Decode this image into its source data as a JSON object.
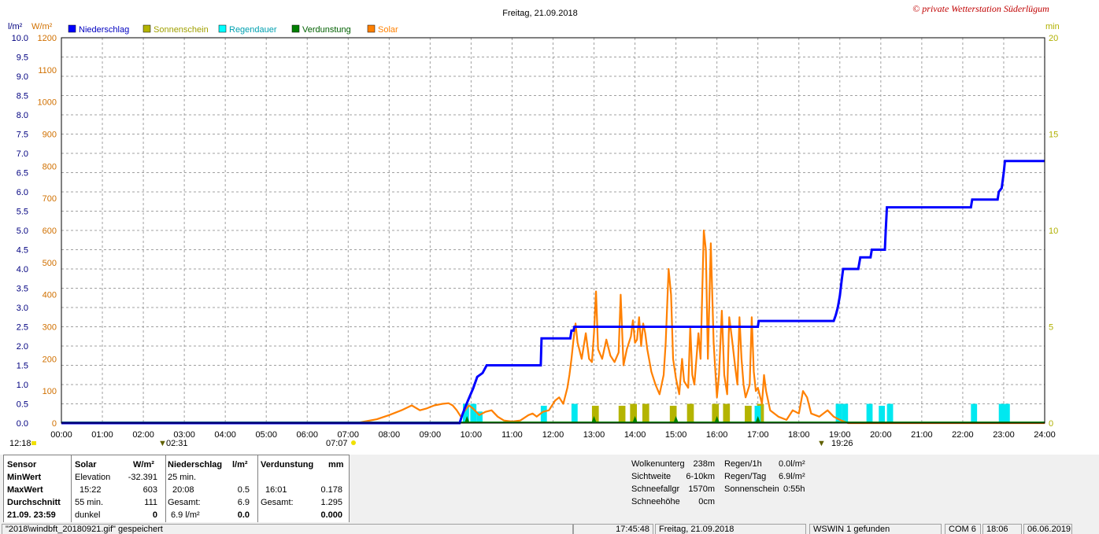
{
  "title": "Freitag, 21.09.2018",
  "copyright": "© private Wetterstation Süderlügum",
  "left_axis_unit": "l/m²",
  "solar_axis_unit": "W/m²",
  "right_axis_unit": "min",
  "legend": [
    {
      "label": "Niederschlag",
      "color": "#0000ff"
    },
    {
      "label": "Sonnenschein",
      "color": "#b4b400"
    },
    {
      "label": "Regendauer",
      "color": "#00ffff"
    },
    {
      "label": "Verdunstung",
      "color": "#008000"
    },
    {
      "label": "Solar",
      "color": "#ff8000"
    }
  ],
  "colors": {
    "precip": "#0000ff",
    "sun": "#b4b400",
    "rain": "#00e8f0",
    "evap": "#008000",
    "solar": "#ff8000",
    "solar_axis": "#d07000",
    "min_axis": "#b0b000"
  },
  "x_ticks": [
    "00:00",
    "01:00",
    "02:00",
    "03:00",
    "04:00",
    "05:00",
    "06:00",
    "07:00",
    "08:00",
    "09:00",
    "10:00",
    "11:00",
    "12:00",
    "13:00",
    "14:00",
    "15:00",
    "16:00",
    "17:00",
    "18:00",
    "19:00",
    "20:00",
    "21:00",
    "22:00",
    "23:00",
    "24:00"
  ],
  "markers": {
    "moonrise": "12:18",
    "moonset": "02:31",
    "sunrise": "07:07",
    "sunset": "19:26"
  },
  "chart_data": {
    "type": "line",
    "title": "Freitag, 21.09.2018",
    "x_range": [
      "00:00",
      "24:00"
    ],
    "y_left": {
      "label": "l/m²",
      "range": [
        0,
        10.0
      ],
      "ticks": [
        "0.0",
        "0.5",
        "1.0",
        "1.5",
        "2.0",
        "2.5",
        "3.0",
        "3.5",
        "4.0",
        "4.5",
        "5.0",
        "5.5",
        "6.0",
        "6.5",
        "7.0",
        "7.5",
        "8.0",
        "8.5",
        "9.0",
        "9.5",
        "10.0"
      ]
    },
    "y_solar": {
      "label": "W/m²",
      "range": [
        0,
        1200
      ],
      "ticks": [
        "0",
        "100",
        "200",
        "300",
        "400",
        "500",
        "600",
        "700",
        "800",
        "900",
        "1000",
        "1100",
        "1200"
      ]
    },
    "y_right": {
      "label": "min",
      "range": [
        0,
        20
      ],
      "ticks": [
        "0",
        "5",
        "10",
        "15",
        "20"
      ]
    },
    "grid": true,
    "legend_position": "top-left",
    "series": [
      {
        "name": "Niederschlag",
        "axis": "left",
        "step": true,
        "points": [
          [
            0,
            0
          ],
          [
            9.72,
            0
          ],
          [
            9.78,
            0.2
          ],
          [
            9.85,
            0.4
          ],
          [
            9.95,
            0.65
          ],
          [
            10.05,
            0.9
          ],
          [
            10.15,
            1.2
          ],
          [
            10.28,
            1.3
          ],
          [
            10.38,
            1.5
          ],
          [
            11.7,
            1.5
          ],
          [
            11.72,
            2.2
          ],
          [
            12.42,
            2.2
          ],
          [
            12.45,
            2.4
          ],
          [
            12.5,
            2.4
          ],
          [
            12.52,
            2.5
          ],
          [
            17.0,
            2.5
          ],
          [
            17.02,
            2.65
          ],
          [
            18.85,
            2.65
          ],
          [
            18.9,
            2.8
          ],
          [
            18.95,
            3.0
          ],
          [
            19.0,
            3.3
          ],
          [
            19.05,
            3.75
          ],
          [
            19.08,
            4.0
          ],
          [
            19.45,
            4.0
          ],
          [
            19.5,
            4.3
          ],
          [
            19.75,
            4.3
          ],
          [
            19.78,
            4.5
          ],
          [
            20.1,
            4.5
          ],
          [
            20.12,
            5.0
          ],
          [
            20.15,
            5.6
          ],
          [
            22.2,
            5.6
          ],
          [
            22.23,
            5.8
          ],
          [
            22.85,
            5.8
          ],
          [
            22.88,
            6.0
          ],
          [
            22.95,
            6.1
          ],
          [
            23.0,
            6.5
          ],
          [
            23.03,
            6.8
          ],
          [
            24.0,
            6.8
          ]
        ]
      },
      {
        "name": "Solar",
        "axis": "solar",
        "points": [
          [
            0,
            0
          ],
          [
            7.2,
            0
          ],
          [
            7.4,
            5
          ],
          [
            7.7,
            12
          ],
          [
            8.0,
            25
          ],
          [
            8.3,
            40
          ],
          [
            8.55,
            55
          ],
          [
            8.75,
            40
          ],
          [
            8.9,
            45
          ],
          [
            9.1,
            55
          ],
          [
            9.3,
            60
          ],
          [
            9.45,
            62
          ],
          [
            9.55,
            55
          ],
          [
            9.65,
            40
          ],
          [
            9.75,
            20
          ],
          [
            9.85,
            40
          ],
          [
            9.95,
            55
          ],
          [
            10.05,
            45
          ],
          [
            10.2,
            25
          ],
          [
            10.35,
            35
          ],
          [
            10.5,
            40
          ],
          [
            10.65,
            20
          ],
          [
            10.8,
            8
          ],
          [
            11.0,
            5
          ],
          [
            11.2,
            8
          ],
          [
            11.4,
            25
          ],
          [
            11.5,
            30
          ],
          [
            11.6,
            20
          ],
          [
            11.75,
            35
          ],
          [
            11.9,
            40
          ],
          [
            12.05,
            70
          ],
          [
            12.15,
            80
          ],
          [
            12.25,
            60
          ],
          [
            12.35,
            110
          ],
          [
            12.4,
            150
          ],
          [
            12.45,
            200
          ],
          [
            12.5,
            260
          ],
          [
            12.55,
            310
          ],
          [
            12.6,
            250
          ],
          [
            12.7,
            200
          ],
          [
            12.8,
            280
          ],
          [
            12.88,
            200
          ],
          [
            12.95,
            190
          ],
          [
            13.0,
            280
          ],
          [
            13.05,
            410
          ],
          [
            13.1,
            230
          ],
          [
            13.2,
            200
          ],
          [
            13.3,
            260
          ],
          [
            13.4,
            210
          ],
          [
            13.5,
            190
          ],
          [
            13.6,
            220
          ],
          [
            13.65,
            400
          ],
          [
            13.72,
            180
          ],
          [
            13.8,
            230
          ],
          [
            13.9,
            270
          ],
          [
            13.95,
            320
          ],
          [
            14.0,
            250
          ],
          [
            14.05,
            260
          ],
          [
            14.1,
            330
          ],
          [
            14.15,
            240
          ],
          [
            14.2,
            310
          ],
          [
            14.25,
            280
          ],
          [
            14.3,
            230
          ],
          [
            14.4,
            160
          ],
          [
            14.5,
            120
          ],
          [
            14.6,
            90
          ],
          [
            14.7,
            150
          ],
          [
            14.75,
            250
          ],
          [
            14.82,
            480
          ],
          [
            14.88,
            400
          ],
          [
            14.93,
            200
          ],
          [
            15.0,
            140
          ],
          [
            15.08,
            90
          ],
          [
            15.15,
            200
          ],
          [
            15.2,
            130
          ],
          [
            15.3,
            110
          ],
          [
            15.35,
            300
          ],
          [
            15.4,
            150
          ],
          [
            15.45,
            120
          ],
          [
            15.5,
            200
          ],
          [
            15.55,
            280
          ],
          [
            15.6,
            200
          ],
          [
            15.68,
            600
          ],
          [
            15.73,
            540
          ],
          [
            15.78,
            200
          ],
          [
            15.85,
            560
          ],
          [
            15.92,
            250
          ],
          [
            16.0,
            80
          ],
          [
            16.05,
            150
          ],
          [
            16.12,
            350
          ],
          [
            16.18,
            150
          ],
          [
            16.25,
            90
          ],
          [
            16.3,
            330
          ],
          [
            16.37,
            260
          ],
          [
            16.45,
            170
          ],
          [
            16.5,
            120
          ],
          [
            16.55,
            330
          ],
          [
            16.6,
            200
          ],
          [
            16.65,
            120
          ],
          [
            16.7,
            80
          ],
          [
            16.8,
            120
          ],
          [
            16.85,
            330
          ],
          [
            16.9,
            160
          ],
          [
            16.95,
            100
          ],
          [
            17.0,
            110
          ],
          [
            17.1,
            60
          ],
          [
            17.15,
            150
          ],
          [
            17.2,
            100
          ],
          [
            17.3,
            40
          ],
          [
            17.5,
            20
          ],
          [
            17.7,
            10
          ],
          [
            17.85,
            40
          ],
          [
            18.0,
            30
          ],
          [
            18.1,
            100
          ],
          [
            18.2,
            80
          ],
          [
            18.3,
            30
          ],
          [
            18.5,
            20
          ],
          [
            18.7,
            40
          ],
          [
            18.85,
            20
          ],
          [
            19.0,
            10
          ],
          [
            19.2,
            0
          ],
          [
            24.0,
            0
          ]
        ]
      },
      {
        "name": "Sonnenschein",
        "axis": "right",
        "bars": [
          [
            12.95,
            0.9
          ],
          [
            13.6,
            0.9
          ],
          [
            13.88,
            1.0
          ],
          [
            14.18,
            1.0
          ],
          [
            14.85,
            0.9
          ],
          [
            15.27,
            1.0
          ],
          [
            15.88,
            1.0
          ],
          [
            16.15,
            1.0
          ],
          [
            16.68,
            0.9
          ],
          [
            16.98,
            1.0
          ]
        ]
      },
      {
        "name": "Regendauer",
        "axis": "right",
        "bars": [
          [
            9.8,
            1.0
          ],
          [
            9.98,
            1.0
          ],
          [
            10.13,
            0.6
          ],
          [
            11.7,
            0.9
          ],
          [
            12.45,
            1.0
          ],
          [
            16.92,
            0.9
          ],
          [
            18.9,
            1.0
          ],
          [
            19.05,
            1.0
          ],
          [
            19.65,
            1.0
          ],
          [
            19.95,
            0.9
          ],
          [
            20.15,
            1.0
          ],
          [
            22.2,
            1.0
          ],
          [
            22.88,
            1.0
          ],
          [
            23.0,
            1.0
          ]
        ]
      },
      {
        "name": "Verdunstung",
        "axis": "right",
        "marks": [
          9.9,
          13.0,
          14.0,
          15.0,
          16.0,
          17.0
        ]
      }
    ]
  },
  "panel": {
    "headers": {
      "sensor": "Sensor",
      "solar": "Solar",
      "solar_unit": "W/m²",
      "niederschlag": "Niederschlag",
      "nied_unit": "l/m²",
      "verdunstung": "Verdunstung",
      "verd_unit": "mm"
    },
    "row_labels": [
      "MinWert",
      "MaxWert",
      "Durchschnitt",
      "21.09. 23:59"
    ],
    "solar_rows": [
      {
        "a": "Elevation",
        "b": "-32.391"
      },
      {
        "a": "15:22",
        "b": "603"
      },
      {
        "a": "55 min.",
        "b": "111"
      },
      {
        "a": "dunkel",
        "b": "0"
      }
    ],
    "nied_rows": [
      {
        "a": "25 min.",
        "b": ""
      },
      {
        "a": "20:08",
        "b": "0.5"
      },
      {
        "a": "Gesamt:",
        "b": "6.9"
      },
      {
        "a": "6.9 l/m²",
        "b": "0.0"
      }
    ],
    "verd_rows": [
      {
        "a": "",
        "b": ""
      },
      {
        "a": "16:01",
        "b": "0.178"
      },
      {
        "a": "Gesamt:",
        "b": "1.295"
      },
      {
        "a": "",
        "b": "0.000"
      }
    ]
  },
  "weather_info": {
    "wolkenunterg_label": "Wolkenunterg",
    "wolkenunterg": "238m",
    "sichtweite_label": "Sichtweite",
    "sichtweite": "6-10km",
    "schneefallgr_label": "Schneefallgr",
    "schneefallgr": "1570m",
    "schneehoehe_label": "Schneehöhe",
    "schneehoehe": "0cm",
    "regen1h_label": "Regen/1h",
    "regen1h": "0.0l/m²",
    "regentag_label": "Regen/Tag",
    "regentag": "6.9l/m²",
    "sonnenschein_label": "Sonnenschein",
    "sonnenschein": "0:55h"
  },
  "status_bar": [
    "\"2018\\windbft_20180921.gif\" gespeichert",
    "17:45:48",
    "Freitag, 21.09.2018",
    "WSWIN 1 gefunden",
    "COM 6",
    "18:06",
    "06.06.2019"
  ]
}
